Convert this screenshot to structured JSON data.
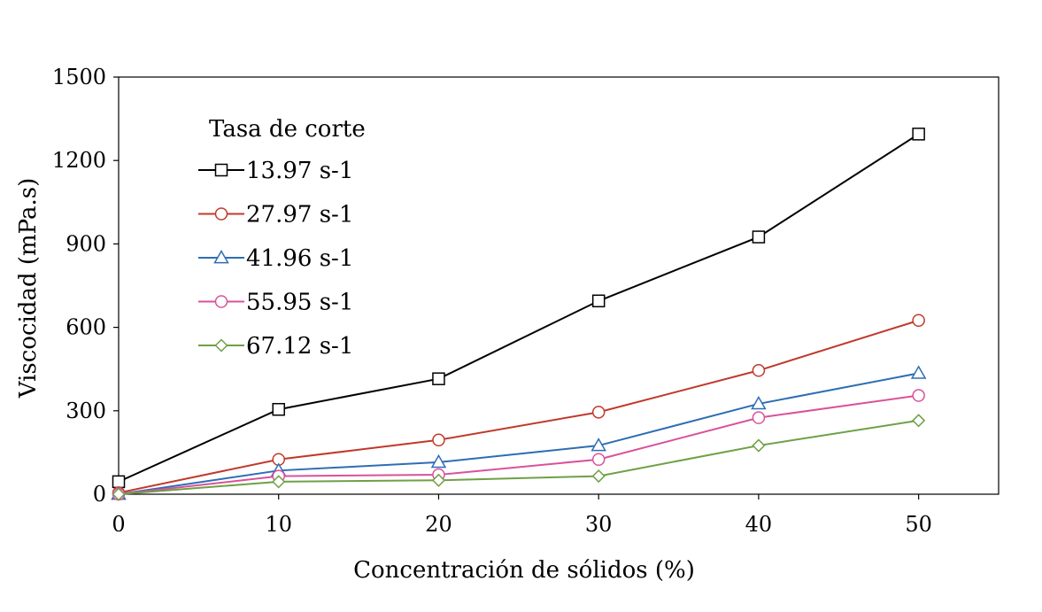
{
  "chart_data": {
    "type": "line",
    "xlabel": "Concentración de sólidos (%)",
    "ylabel": "Viscocidad (mPa.s)",
    "xlim": [
      0,
      55
    ],
    "ylim": [
      0,
      1500
    ],
    "x_ticks": [
      0,
      10,
      20,
      30,
      40,
      50
    ],
    "y_ticks": [
      0,
      300,
      600,
      900,
      1200,
      1500
    ],
    "x_tick_labels": [
      "0",
      "10",
      "20",
      "30",
      "40",
      "50"
    ],
    "y_tick_labels": [
      "0",
      "300",
      "600",
      "900",
      "1200",
      "1500"
    ],
    "grid": false,
    "legend": {
      "title": "Tasa de corte",
      "placement": "top-left"
    },
    "series": [
      {
        "name": "13.97 s-1",
        "color": "#000000",
        "marker": "square",
        "x": [
          0,
          10,
          20,
          30,
          40,
          50
        ],
        "y": [
          45,
          305,
          415,
          695,
          925,
          1295
        ]
      },
      {
        "name": "27.97 s-1",
        "color": "#c0392b",
        "marker": "circle",
        "x": [
          0,
          10,
          20,
          30,
          40,
          50
        ],
        "y": [
          5,
          125,
          195,
          295,
          445,
          625
        ]
      },
      {
        "name": "41.96 s-1",
        "color": "#2e6db4",
        "marker": "triangle",
        "x": [
          0,
          10,
          20,
          30,
          40,
          50
        ],
        "y": [
          0,
          85,
          115,
          175,
          325,
          435
        ]
      },
      {
        "name": "55.95 s-1",
        "color": "#d9529a",
        "marker": "circle",
        "x": [
          0,
          10,
          20,
          30,
          40,
          50
        ],
        "y": [
          0,
          65,
          70,
          125,
          275,
          355
        ]
      },
      {
        "name": "67.12 s-1",
        "color": "#6ea046",
        "marker": "diamond",
        "x": [
          0,
          10,
          20,
          30,
          40,
          50
        ],
        "y": [
          0,
          45,
          50,
          65,
          175,
          265
        ]
      }
    ]
  }
}
